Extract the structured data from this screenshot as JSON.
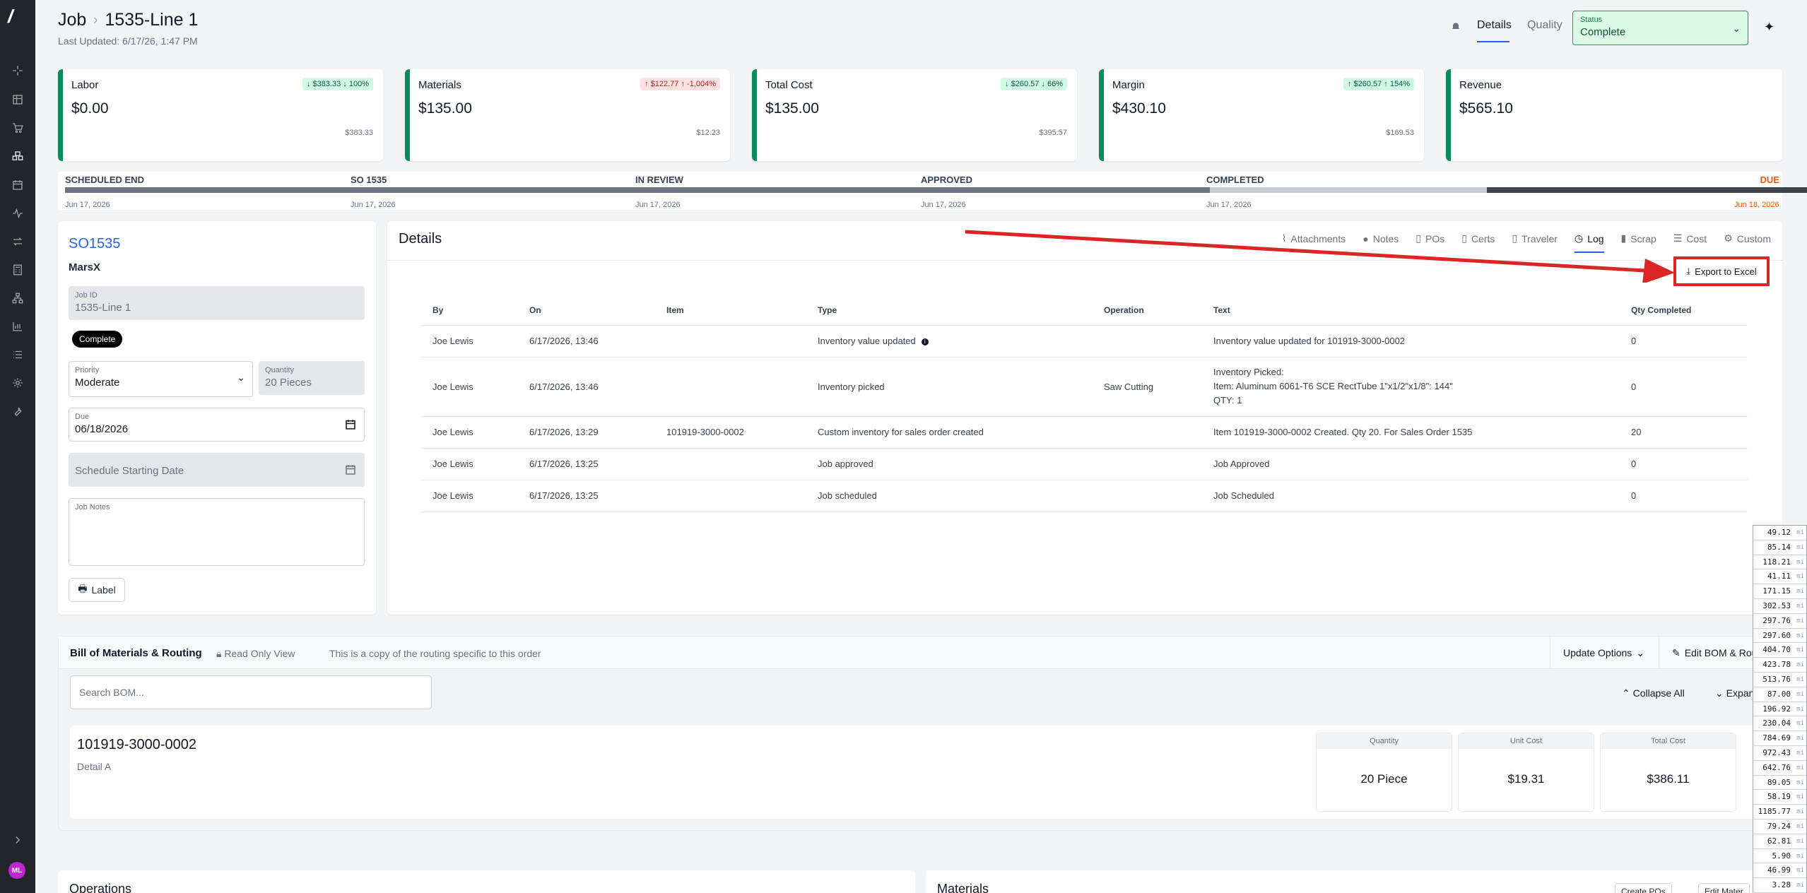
{
  "header": {
    "section": "Job",
    "job_name": "1535-Line 1",
    "last_updated": "Last Updated: 6/17/26, 1:47 PM",
    "tabs": [
      "Details",
      "Quality"
    ],
    "status_label": "Status",
    "status_value": "Complete"
  },
  "metrics": [
    {
      "title": "Labor",
      "amount": "$0.00",
      "badge": "↓ $383.33 ↓ 100%",
      "sub": "$383.33",
      "badge_tone": "green"
    },
    {
      "title": "Materials",
      "amount": "$135.00",
      "badge": "↑ $122.77 ↑ -1,004%",
      "sub": "$12.23",
      "badge_tone": "red"
    },
    {
      "title": "Total Cost",
      "amount": "$135.00",
      "badge": "↓ $260.57 ↓ 66%",
      "sub": "$395.57",
      "badge_tone": "green"
    },
    {
      "title": "Margin",
      "amount": "$430.10",
      "badge": "↑ $260.57 ↑ 154%",
      "sub": "$169.53",
      "badge_tone": "green"
    },
    {
      "title": "Revenue",
      "amount": "$565.10",
      "badge": "",
      "sub": "",
      "badge_tone": ""
    }
  ],
  "timeline": [
    {
      "name": "SCHEDULED END",
      "date": "Jun 17, 2026"
    },
    {
      "name": "SO 1535",
      "date": "Jun 17, 2026"
    },
    {
      "name": "IN REVIEW",
      "date": "Jun 17, 2026"
    },
    {
      "name": "APPROVED",
      "date": "Jun 17, 2026"
    },
    {
      "name": "COMPLETED",
      "date": "Jun 17, 2026"
    },
    {
      "name": "DUE",
      "date": "Jun 18, 2026"
    }
  ],
  "job": {
    "so_link": "SO1535",
    "customer": "MarsX",
    "job_id_label": "Job ID",
    "job_id": "1535-Line 1",
    "status_badge": "Complete",
    "priority_label": "Priority",
    "priority": "Moderate",
    "quantity_label": "Quantity",
    "quantity": "20 Pieces",
    "due_label": "Due",
    "due": "06/18/2026",
    "schedule_placeholder": "Schedule Starting Date",
    "notes_label": "Job Notes",
    "label_button": "Label"
  },
  "details": {
    "title": "Details",
    "tabs": [
      "Attachments",
      "Notes",
      "POs",
      "Certs",
      "Traveler",
      "Log",
      "Scrap",
      "Cost",
      "Custom"
    ],
    "active_tab": "Log",
    "export_label": "Export to Excel",
    "columns": [
      "By",
      "On",
      "Item",
      "Type",
      "Operation",
      "Text",
      "Qty Completed"
    ],
    "rows": [
      {
        "by": "Joe Lewis",
        "on": "6/17/2026, 13:46",
        "item": "",
        "type": "Inventory value updated",
        "operation": "",
        "text": "Inventory value updated for 101919-3000-0002",
        "qty": "0"
      },
      {
        "by": "Joe Lewis",
        "on": "6/17/2026, 13:46",
        "item": "",
        "type": "Inventory picked",
        "operation": "Saw Cutting",
        "text_lines": [
          "Inventory Picked:",
          "Item: Aluminum 6061-T6 SCE RectTube 1\"x1/2\"x1/8\": 144\"",
          "QTY: 1"
        ],
        "qty": "0"
      },
      {
        "by": "Joe Lewis",
        "on": "6/17/2026, 13:29",
        "item": "101919-3000-0002",
        "type": "Custom inventory for sales order created",
        "operation": "",
        "text": "Item 101919-3000-0002 Created. Qty 20. For Sales Order 1535",
        "qty": "20"
      },
      {
        "by": "Joe Lewis",
        "on": "6/17/2026, 13:25",
        "item": "",
        "type": "Job approved",
        "operation": "",
        "text": "Job Approved",
        "qty": "0"
      },
      {
        "by": "Joe Lewis",
        "on": "6/17/2026, 13:25",
        "item": "",
        "type": "Job scheduled",
        "operation": "",
        "text": "Job Scheduled",
        "qty": "0"
      }
    ]
  },
  "bom": {
    "title": "Bill of Materials & Routing",
    "read_only": "Read Only View",
    "copy_note": "This is a copy of the routing specific to this order",
    "update_options": "Update Options",
    "edit_bom": "Edit BOM & Rou",
    "search_placeholder": "Search BOM...",
    "collapse_all": "Collapse All",
    "expand": "Expand",
    "part": "101919-3000-0002",
    "description": "Detail A",
    "stats": [
      {
        "label": "Quantity",
        "value": "20  Piece"
      },
      {
        "label": "Unit Cost",
        "value": "$19.31"
      },
      {
        "label": "Total Cost",
        "value": "$386.11"
      }
    ]
  },
  "bottom": {
    "operations_title": "Operations",
    "materials_title": "Materials",
    "create_pos": "Create POs",
    "edit_materials": "Edit Mater"
  },
  "distances": {
    "unit": "mi",
    "values": [
      "49.12",
      "85.14",
      "118.21",
      "41.11",
      "171.15",
      "302.53",
      "297.76",
      "297.60",
      "404.70",
      "423.78",
      "513.76",
      "87.00",
      "196.92",
      "230.04",
      "784.69",
      "972.43",
      "642.76",
      "89.05",
      "58.19",
      "1185.77",
      "79.24",
      "62.81",
      "5.90",
      "46.99",
      "3.28"
    ]
  }
}
